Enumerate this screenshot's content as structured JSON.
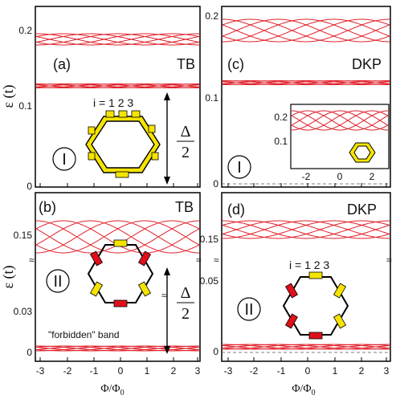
{
  "colors": {
    "curve": "#e0202a",
    "frame": "#000000",
    "yellow": "#f5e400",
    "red": "#e0101a"
  },
  "labels": {
    "y_axis": "ε (t)",
    "x_axis": "Φ/Φ",
    "x_axis_sub": "0",
    "x_ticks": [
      "-3",
      "-2",
      "-1",
      "0",
      "1",
      "2",
      "3"
    ],
    "inset_x_ticks": [
      "-2",
      "0",
      "2"
    ],
    "inset_y_ticks": [
      "0.2",
      "0.1"
    ],
    "index_label": "i = 1 2 3",
    "forbidden": "\"forbidden\" band",
    "delta": "Δ",
    "delta_den": "2"
  },
  "chart_data": [
    {
      "panel": "(a)",
      "method": "TB",
      "regime": "I",
      "type": "line",
      "xlim": [
        -3,
        3
      ],
      "ylim": [
        0,
        0.22
      ],
      "yticks": [
        "0",
        "0.1",
        "0.2"
      ],
      "bands": [
        {
          "center": 0.183,
          "half_width": 0.009,
          "curves": 6
        },
        {
          "center": 0.129,
          "half_width": 0.004,
          "curves": 6
        }
      ]
    },
    {
      "panel": "(b)",
      "method": "TB",
      "regime": "II",
      "type": "line",
      "xlim": [
        -3,
        3
      ],
      "broken_y_axis": true,
      "yticks": [
        "0",
        "0.03",
        "0.15"
      ],
      "bands": [
        {
          "center": 0.148,
          "half_width": 0.018,
          "curves": 6
        },
        {
          "center": 0.004,
          "half_width": 0.003,
          "curves": 6
        }
      ]
    },
    {
      "panel": "(c)",
      "method": "DKP",
      "regime": "I",
      "type": "line",
      "xlim": [
        -3,
        3
      ],
      "ylim": [
        0,
        0.21
      ],
      "yticks": [
        "0",
        "0.1",
        "0.2"
      ],
      "bands": [
        {
          "center": 0.185,
          "half_width": 0.012,
          "curves": 6
        },
        {
          "center": 0.114,
          "half_width": 0.004,
          "curves": 6
        }
      ],
      "inset": {
        "xlim": [
          -3,
          3
        ],
        "ylim": [
          0.05,
          0.25
        ],
        "xticks": [
          "-2",
          "0",
          "2"
        ],
        "yticks": [
          "0.1",
          "0.2"
        ]
      }
    },
    {
      "panel": "(d)",
      "method": "DKP",
      "regime": "II",
      "type": "line",
      "xlim": [
        -3,
        3
      ],
      "broken_y_axis": true,
      "yticks": [
        "0",
        "0.05",
        "0.15"
      ],
      "bands": [
        {
          "center": 0.151,
          "half_width": 0.014,
          "curves": 6
        },
        {
          "center": 0.003,
          "half_width": 0.003,
          "curves": 6
        }
      ]
    }
  ]
}
